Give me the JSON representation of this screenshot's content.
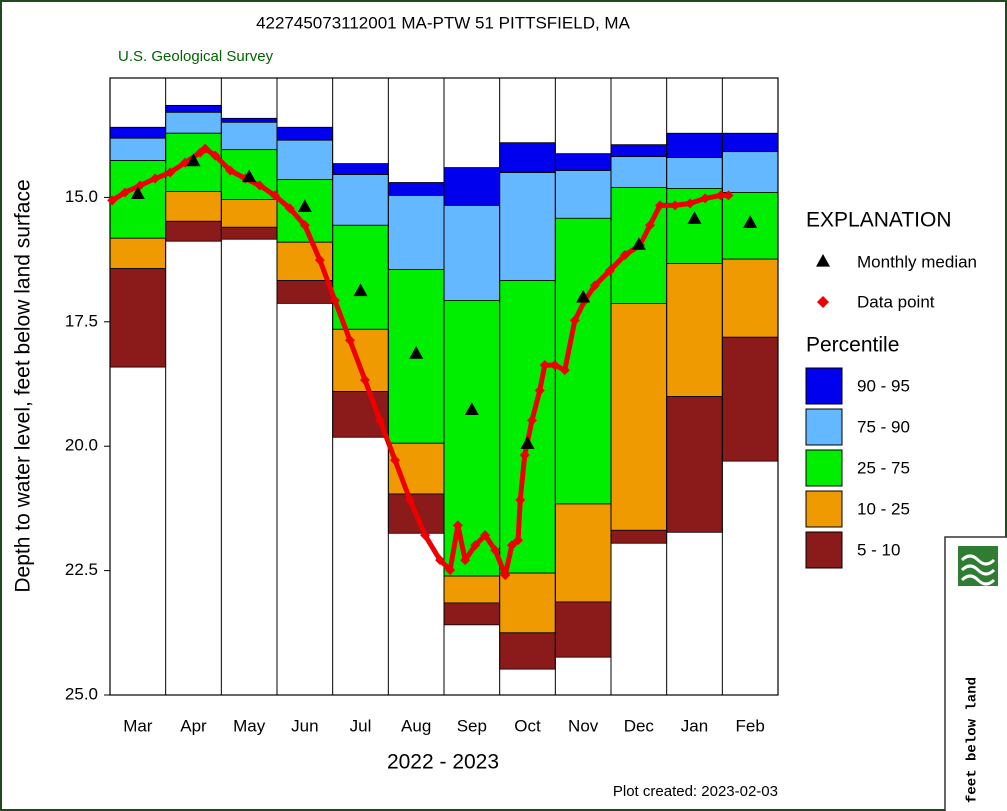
{
  "chart_data": {
    "type": "percentile_bar",
    "title": "422745073112001 MA-PTW   51 PITTSFIELD, MA",
    "subtitle": "U.S. Geological Survey",
    "y_label": "Depth to water level, feet below land surface",
    "x_label": "2022 - 2023",
    "footnote": "Plot created: 2023-02-03",
    "categories": [
      "Mar",
      "Apr",
      "May",
      "Jun",
      "Jul",
      "Aug",
      "Sep",
      "Oct",
      "Nov",
      "Dec",
      "Jan",
      "Feb"
    ],
    "ylim": [
      12.6,
      25
    ],
    "y_inverted": true,
    "yticks": [
      {
        "value": 15,
        "label": "15.0"
      },
      17.5,
      {
        "value": 20,
        "label": "20.0"
      },
      22.5,
      {
        "value": 25,
        "label": "25.0"
      }
    ],
    "legend_title": "EXPLANATION",
    "percentile_title": "Percentile",
    "bands": [
      {
        "name": "90 - 95",
        "color": "#0000ee",
        "values": [
          13.59,
          13.15,
          13.41,
          13.59,
          14.32,
          14.7,
          14.4,
          13.9,
          14.12,
          13.94,
          13.71,
          13.71
        ]
      },
      {
        "name": "75 - 90",
        "color": "#63b8ff",
        "values": [
          13.81,
          13.29,
          13.49,
          13.85,
          14.54,
          14.96,
          15.16,
          14.5,
          14.46,
          14.18,
          14.2,
          14.08
        ]
      },
      {
        "name": "25 - 75",
        "color": "#00ee00",
        "values": [
          14.26,
          13.71,
          14.04,
          14.64,
          15.56,
          16.45,
          17.07,
          16.67,
          15.42,
          14.8,
          14.82,
          14.9
        ]
      },
      {
        "name": "10 - 25",
        "color": "#ee9a00",
        "values": [
          15.82,
          14.88,
          15.04,
          15.9,
          17.65,
          19.94,
          22.61,
          22.55,
          21.16,
          17.13,
          16.33,
          16.24
        ]
      },
      {
        "name": "5 - 10",
        "color": "#8b1a1a",
        "values": [
          16.43,
          15.48,
          15.6,
          16.67,
          18.9,
          20.96,
          23.15,
          23.75,
          23.13,
          21.69,
          19.0,
          17.81
        ]
      }
    ],
    "band_floor": [
      18.41,
      15.88,
      15.84,
      17.13,
      19.82,
      21.75,
      23.59,
      24.48,
      24.24,
      21.95,
      21.73,
      20.3
    ],
    "median": {
      "name": "Monthly median",
      "color": "#000000",
      "values": [
        14.92,
        14.26,
        14.58,
        15.18,
        16.87,
        18.13,
        19.26,
        19.94,
        17.0,
        15.94,
        15.42,
        15.5
      ]
    },
    "points": {
      "name": "Data point",
      "color": "#ee0000",
      "xlim": [
        0,
        12
      ],
      "x": [
        0.04,
        0.27,
        0.54,
        0.81,
        1.08,
        1.35,
        1.62,
        1.71,
        1.89,
        2.16,
        2.43,
        2.69,
        2.96,
        3.23,
        3.5,
        3.77,
        4.04,
        4.31,
        4.58,
        4.85,
        5.12,
        5.39,
        5.66,
        5.93,
        6.11,
        6.25,
        6.38,
        6.56,
        6.74,
        6.92,
        7.1,
        7.22,
        7.33,
        7.37,
        7.45,
        7.58,
        7.72,
        7.81,
        7.99,
        8.17,
        8.35,
        8.53,
        8.71,
        8.98,
        9.25,
        9.52,
        9.7,
        9.88,
        10.15,
        10.42,
        10.69,
        10.97,
        11.11
      ],
      "values": [
        15.06,
        14.9,
        14.76,
        14.62,
        14.5,
        14.3,
        14.1,
        14.02,
        14.16,
        14.46,
        14.62,
        14.76,
        14.96,
        15.22,
        15.56,
        16.26,
        17.07,
        17.87,
        18.67,
        19.48,
        20.28,
        21.08,
        21.79,
        22.29,
        22.49,
        21.59,
        22.29,
        21.99,
        21.79,
        22.09,
        22.59,
        21.99,
        21.89,
        21.08,
        20.18,
        19.48,
        18.88,
        18.37,
        18.37,
        18.47,
        17.47,
        17.07,
        16.77,
        16.47,
        16.16,
        15.96,
        15.56,
        15.16,
        15.16,
        15.12,
        15.02,
        14.96,
        14.96
      ]
    }
  },
  "overlay_window": {
    "text": "feet below land"
  }
}
